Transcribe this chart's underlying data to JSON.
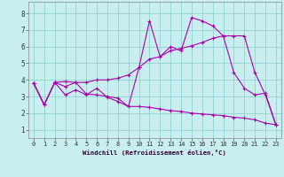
{
  "title": "",
  "xlabel": "Windchill (Refroidissement éolien,°C)",
  "ylabel": "",
  "xlim": [
    -0.5,
    23.5
  ],
  "ylim": [
    0.5,
    8.7
  ],
  "xticks": [
    0,
    1,
    2,
    3,
    4,
    5,
    6,
    7,
    8,
    9,
    10,
    11,
    12,
    13,
    14,
    15,
    16,
    17,
    18,
    19,
    20,
    21,
    22,
    23
  ],
  "yticks": [
    1,
    2,
    3,
    4,
    5,
    6,
    7,
    8
  ],
  "bg_color": "#c8eef0",
  "line_color": "#aa00aa",
  "grid_color": "#88cccc",
  "lines": [
    [
      3.8,
      2.5,
      3.85,
      3.6,
      3.85,
      3.15,
      3.1,
      3.0,
      2.9,
      2.4,
      4.75,
      7.55,
      5.4,
      6.0,
      5.75,
      7.75,
      7.55,
      7.25,
      6.65,
      4.45,
      3.5,
      3.1,
      3.2,
      1.3
    ],
    [
      3.8,
      2.5,
      3.85,
      3.9,
      3.85,
      3.85,
      4.0,
      4.0,
      4.1,
      4.3,
      4.75,
      5.25,
      5.4,
      5.75,
      5.9,
      6.05,
      6.25,
      6.5,
      6.65,
      6.65,
      6.65,
      4.45,
      3.1,
      1.3
    ],
    [
      3.8,
      2.5,
      3.85,
      3.1,
      3.4,
      3.1,
      3.5,
      2.95,
      2.7,
      2.4,
      2.4,
      2.35,
      2.25,
      2.15,
      2.1,
      2.0,
      1.95,
      1.9,
      1.85,
      1.75,
      1.7,
      1.6,
      1.4,
      1.3
    ]
  ],
  "font_size_tick": 5.0,
  "font_size_xlabel": 5.2,
  "marker_size": 2.5,
  "line_width": 0.8
}
